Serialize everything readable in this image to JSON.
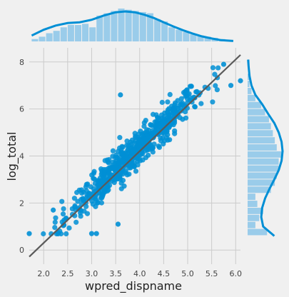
{
  "chart_data": {
    "type": "scatter",
    "title": "",
    "xlabel": "wpred_dispname",
    "ylabel": "log_total",
    "xlim": [
      1.7,
      6.1
    ],
    "ylim": [
      -0.6,
      8.6
    ],
    "xticks": [
      "2.0",
      "2.5",
      "3.0",
      "3.5",
      "4.0",
      "4.5",
      "5.0",
      "5.5",
      "6.0"
    ],
    "yticks": [
      "0",
      "2",
      "4",
      "6",
      "8"
    ],
    "grid": true,
    "regression_line": {
      "x": [
        1.7,
        6.1
      ],
      "y": [
        -0.1,
        8.3
      ]
    },
    "colors": {
      "points": "#008fd5",
      "fit_line": "#5a5a5a",
      "hist": "#7ec0e8",
      "background": "#f0f0f0",
      "grid": "#cbcbcb"
    },
    "scatter_band": {
      "n": 650,
      "slope": 1.93,
      "intercept": -3.38,
      "spread": 0.38,
      "x_center": 3.9,
      "x_sd": 0.72,
      "floor": 0.69
    },
    "outliers": [
      {
        "x": 1.7,
        "y": 0.7
      },
      {
        "x": 3.0,
        "y": 0.7
      },
      {
        "x": 3.1,
        "y": 0.7
      },
      {
        "x": 3.55,
        "y": 1.1
      },
      {
        "x": 3.6,
        "y": 6.6
      },
      {
        "x": 5.75,
        "y": 7.9
      },
      {
        "x": 6.1,
        "y": 7.2
      },
      {
        "x": 5.9,
        "y": 7.0
      },
      {
        "x": 2.2,
        "y": 1.7
      }
    ],
    "x_marginal": {
      "bins": [
        1.75,
        1.9,
        2.05,
        2.2,
        2.35,
        2.5,
        2.65,
        2.8,
        2.95,
        3.1,
        3.25,
        3.4,
        3.55,
        3.7,
        3.85,
        4.0,
        4.15,
        4.3,
        4.45,
        4.6,
        4.75,
        4.9,
        5.05,
        5.2,
        5.35,
        5.5,
        5.65,
        5.8,
        5.95
      ],
      "counts": [
        2,
        4,
        7,
        9,
        12,
        14,
        14,
        15,
        12,
        22,
        24,
        26,
        28,
        27,
        26,
        25,
        24,
        19,
        17,
        12,
        10,
        8,
        6,
        5,
        4,
        3,
        2,
        1
      ],
      "kde_x": [
        1.75,
        2.0,
        2.25,
        2.5,
        2.75,
        3.0,
        3.25,
        3.5,
        3.7,
        3.9,
        4.1,
        4.3,
        4.5,
        4.7,
        4.9,
        5.1,
        5.3,
        5.5,
        5.7,
        5.95
      ],
      "kde_y": [
        0.14,
        0.28,
        0.38,
        0.44,
        0.46,
        0.52,
        0.62,
        0.7,
        0.72,
        0.7,
        0.64,
        0.56,
        0.46,
        0.36,
        0.27,
        0.19,
        0.12,
        0.07,
        0.03,
        0.01
      ]
    },
    "y_marginal": {
      "bins": [
        0.6,
        0.9,
        1.2,
        1.5,
        1.8,
        2.1,
        2.4,
        2.7,
        3.0,
        3.3,
        3.6,
        3.9,
        4.2,
        4.5,
        4.8,
        5.1,
        5.4,
        5.7,
        6.0,
        6.3,
        6.6,
        6.9,
        7.2,
        7.5,
        7.8,
        8.1
      ],
      "counts": [
        10,
        4,
        6,
        8,
        5,
        4,
        12,
        14,
        15,
        16,
        16,
        18,
        15,
        14,
        13,
        12,
        11,
        9,
        7,
        4,
        2,
        1,
        1,
        0,
        1
      ],
      "kde_y": [
        0.6,
        1.0,
        1.4,
        1.8,
        2.2,
        2.6,
        3.0,
        3.4,
        3.8,
        4.2,
        4.6,
        5.0,
        5.4,
        5.8,
        6.2,
        6.6,
        7.0,
        7.4,
        7.8,
        8.1
      ],
      "kde_x": [
        0.55,
        0.32,
        0.28,
        0.3,
        0.36,
        0.45,
        0.55,
        0.64,
        0.7,
        0.72,
        0.7,
        0.64,
        0.55,
        0.42,
        0.3,
        0.16,
        0.08,
        0.04,
        0.02,
        0.01
      ]
    }
  }
}
